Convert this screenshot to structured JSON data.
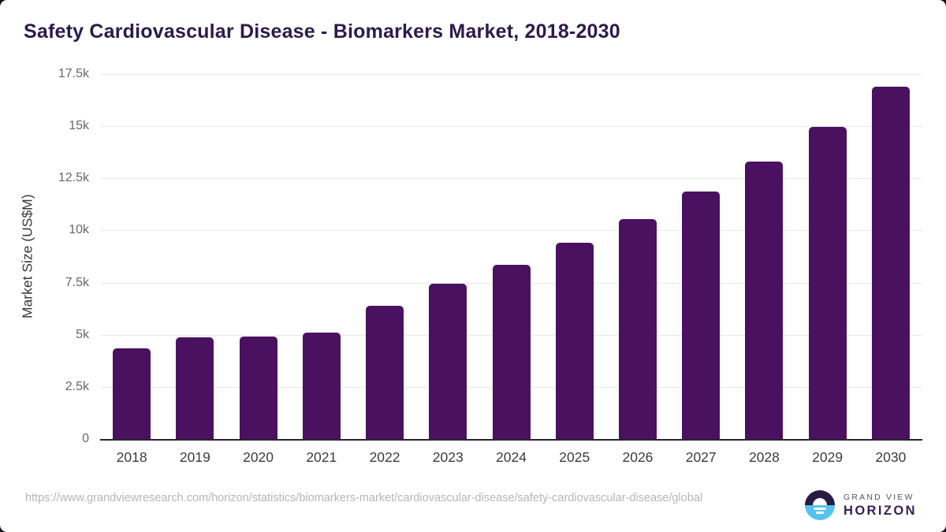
{
  "page": {
    "title": "Safety Cardiovascular Disease - Biomarkers Market, 2018-2030",
    "source_url": "https://www.grandviewresearch.com/horizon/statistics/biomarkers-market/cardiovascular-disease/safety-cardiovascular-disease/global",
    "logo": {
      "line1": "GRAND VIEW",
      "line2": "HORIZON"
    }
  },
  "colors": {
    "bar": "#4a1160",
    "title_text": "#2d1a4d",
    "gridline": "#e9e9e9",
    "axis_line": "#29242e",
    "ytick_text": "#676767",
    "xtick_text": "#3c3c3c",
    "url_text": "#b6b6b6",
    "logo_dark": "#2a1a42",
    "logo_blue": "#55c3ef"
  },
  "chart_data": {
    "type": "bar",
    "title": "Safety Cardiovascular Disease - Biomarkers Market, 2018-2030",
    "categories": [
      "2018",
      "2019",
      "2020",
      "2021",
      "2022",
      "2023",
      "2024",
      "2025",
      "2026",
      "2027",
      "2028",
      "2029",
      "2030"
    ],
    "values": [
      4350,
      4870,
      4910,
      5110,
      6400,
      7460,
      8360,
      9410,
      10550,
      11850,
      13320,
      14950,
      16900
    ],
    "xlabel": "",
    "ylabel": "Market Size (US$M)",
    "ylim": [
      0,
      17500
    ],
    "yticks": [
      0,
      2500,
      5000,
      7500,
      10000,
      12500,
      15000,
      17500
    ],
    "ytick_labels": [
      "0",
      "2.5k",
      "5k",
      "7.5k",
      "10k",
      "12.5k",
      "15k",
      "17.5k"
    ],
    "bar_color": "#4a1160",
    "grid": true,
    "legend": false
  }
}
